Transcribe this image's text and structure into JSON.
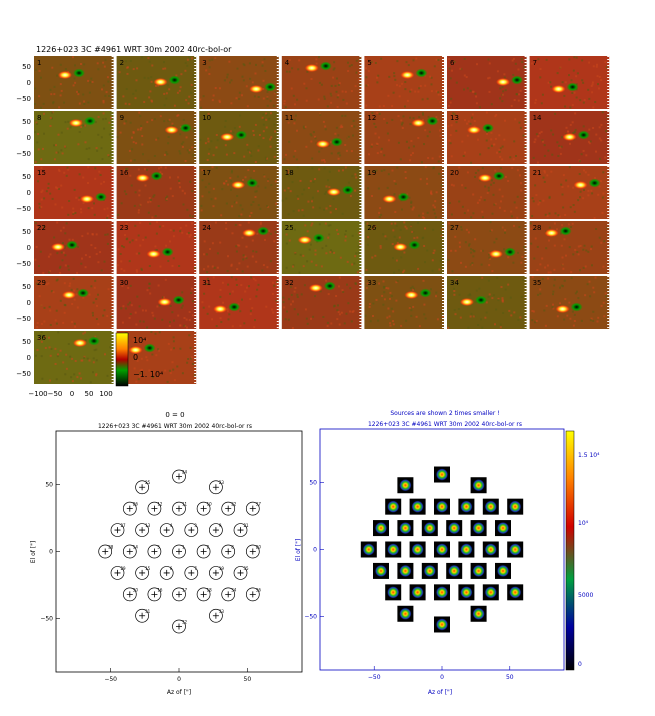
{
  "top_title": "1226+023 3C #4961 WRT 30m       2002 40rc-bol-or",
  "chart_data": [
    {
      "type": "heatmap",
      "panels": [
        1,
        2,
        3,
        4,
        5,
        6,
        7,
        8,
        9,
        10,
        11,
        12,
        13,
        14,
        15,
        16,
        17,
        18,
        19,
        20,
        21,
        22,
        23,
        24,
        25,
        26,
        27,
        28,
        29,
        30,
        31,
        32,
        33,
        34,
        35,
        36,
        37
      ],
      "panel_labels": [
        "1",
        "2",
        "3",
        "4",
        "5",
        "6",
        "7",
        "8",
        "9",
        "10",
        "11",
        "12",
        "13",
        "14",
        "15",
        "16",
        "17",
        "18",
        "19",
        "20",
        "21",
        "22",
        "23",
        "24",
        "25",
        "26",
        "27",
        "28",
        "29",
        "30",
        "31",
        "32",
        "33",
        "34",
        "35",
        "36",
        "37"
      ],
      "y_ticks": [
        "50",
        "0",
        "−50"
      ],
      "x_ticks": [
        "−100",
        "−50",
        "0",
        "50",
        "100"
      ],
      "colorbar_labels": [
        "10⁴",
        "0",
        "−1. 10⁴"
      ],
      "colors": {
        "positive": "#ffff00",
        "mid": "#c03010",
        "negative": "#003000",
        "background": "#9a3a18"
      }
    },
    {
      "type": "scatter",
      "header_top": "0 = 0",
      "title": "1226+023 3C #4961 WRT 30m       2002 40rc-bol-or      rs",
      "xlabel": "Az of [\"]",
      "ylabel": "El of [\"]",
      "xlim": [
        -90,
        90
      ],
      "ylim": [
        -90,
        90
      ],
      "x_ticks": [
        "−50",
        "0",
        "50"
      ],
      "y_ticks": [
        "50",
        "0",
        "−50"
      ],
      "points": [
        {
          "id": "1",
          "x": 0,
          "y": 0
        },
        {
          "id": "2",
          "x": 18,
          "y": 0
        },
        {
          "id": "3",
          "x": 9,
          "y": 16
        },
        {
          "id": "4",
          "x": -9,
          "y": 16
        },
        {
          "id": "5",
          "x": -18,
          "y": 0
        },
        {
          "id": "6",
          "x": -9,
          "y": -16
        },
        {
          "id": "7",
          "x": 9,
          "y": -16
        },
        {
          "id": "8",
          "x": 36,
          "y": 0
        },
        {
          "id": "9",
          "x": 27,
          "y": 16
        },
        {
          "id": "10",
          "x": 18,
          "y": 32
        },
        {
          "id": "11",
          "x": 0,
          "y": 32
        },
        {
          "id": "12",
          "x": -18,
          "y": 32
        },
        {
          "id": "13",
          "x": -27,
          "y": 16
        },
        {
          "id": "14",
          "x": -36,
          "y": 0
        },
        {
          "id": "15",
          "x": -27,
          "y": -16
        },
        {
          "id": "16",
          "x": -18,
          "y": -32
        },
        {
          "id": "17",
          "x": 0,
          "y": -32
        },
        {
          "id": "18",
          "x": 18,
          "y": -32
        },
        {
          "id": "19",
          "x": 27,
          "y": -16
        },
        {
          "id": "20",
          "x": 54,
          "y": 0
        },
        {
          "id": "21",
          "x": 45,
          "y": 16
        },
        {
          "id": "22",
          "x": 36,
          "y": 32
        },
        {
          "id": "23",
          "x": 27,
          "y": 48
        },
        {
          "id": "24",
          "x": 0,
          "y": 56
        },
        {
          "id": "25",
          "x": -27,
          "y": 48
        },
        {
          "id": "26",
          "x": -36,
          "y": 32
        },
        {
          "id": "27",
          "x": -45,
          "y": 16
        },
        {
          "id": "28",
          "x": -54,
          "y": 0
        },
        {
          "id": "29",
          "x": -45,
          "y": -16
        },
        {
          "id": "30",
          "x": -36,
          "y": -32
        },
        {
          "id": "31",
          "x": -27,
          "y": -48
        },
        {
          "id": "32",
          "x": 0,
          "y": -56
        },
        {
          "id": "33",
          "x": 27,
          "y": -48
        },
        {
          "id": "34",
          "x": 36,
          "y": -32
        },
        {
          "id": "35",
          "x": 45,
          "y": -16
        },
        {
          "id": "36",
          "x": 54,
          "y": -32
        },
        {
          "id": "37",
          "x": 54,
          "y": 32
        }
      ]
    },
    {
      "type": "heatmap",
      "header_top": "Sources are shown 2 times smaller !",
      "title": "1226+023 3C #4961 WRT 30m       2002 40rc-bol-or      rs",
      "xlabel": "Az of [\"]",
      "ylabel": "El of [\"]",
      "xlim": [
        -90,
        90
      ],
      "ylim": [
        -90,
        90
      ],
      "x_ticks": [
        "−50",
        "0",
        "50"
      ],
      "y_ticks": [
        "50",
        "0",
        "−50"
      ],
      "colorbar_labels": [
        "1.5 10⁴",
        "10⁴",
        "5000",
        "0"
      ],
      "colors": {
        "axis": "#0000c0",
        "tile": "#000000"
      }
    }
  ]
}
